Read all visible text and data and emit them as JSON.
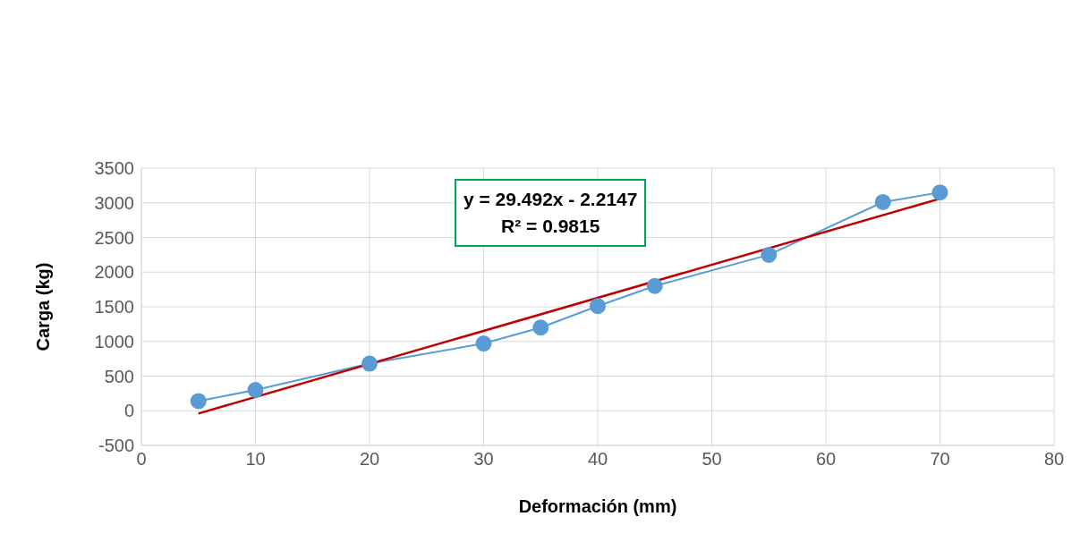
{
  "chart_data": {
    "type": "line",
    "xlabel": "Deformación (mm)",
    "ylabel": "Carga (kg)",
    "x": [
      5,
      10,
      20,
      30,
      35,
      40,
      45,
      55,
      65,
      70
    ],
    "series": [
      {
        "color": "#5b9bd5",
        "values": [
          140,
          300,
          680,
          970,
          1200,
          1510,
          1800,
          2250,
          3010,
          3150
        ],
        "marker": "circle"
      },
      {
        "type": "line",
        "color": "#c00000",
        "x": [
          5,
          70
        ],
        "values": [
          -40,
          3060
        ],
        "marker": "none"
      }
    ],
    "xlim": [
      0,
      80
    ],
    "xticks": [
      0,
      10,
      20,
      30,
      40,
      50,
      60,
      70,
      80
    ],
    "ylim": [
      -500,
      3500
    ],
    "yticks": [
      -500,
      0,
      500,
      1000,
      1500,
      2000,
      2500,
      3000,
      3500
    ],
    "grid": true,
    "annotations": [
      "y = 29.492x - 2.2147",
      "R² = 0.9815"
    ]
  }
}
